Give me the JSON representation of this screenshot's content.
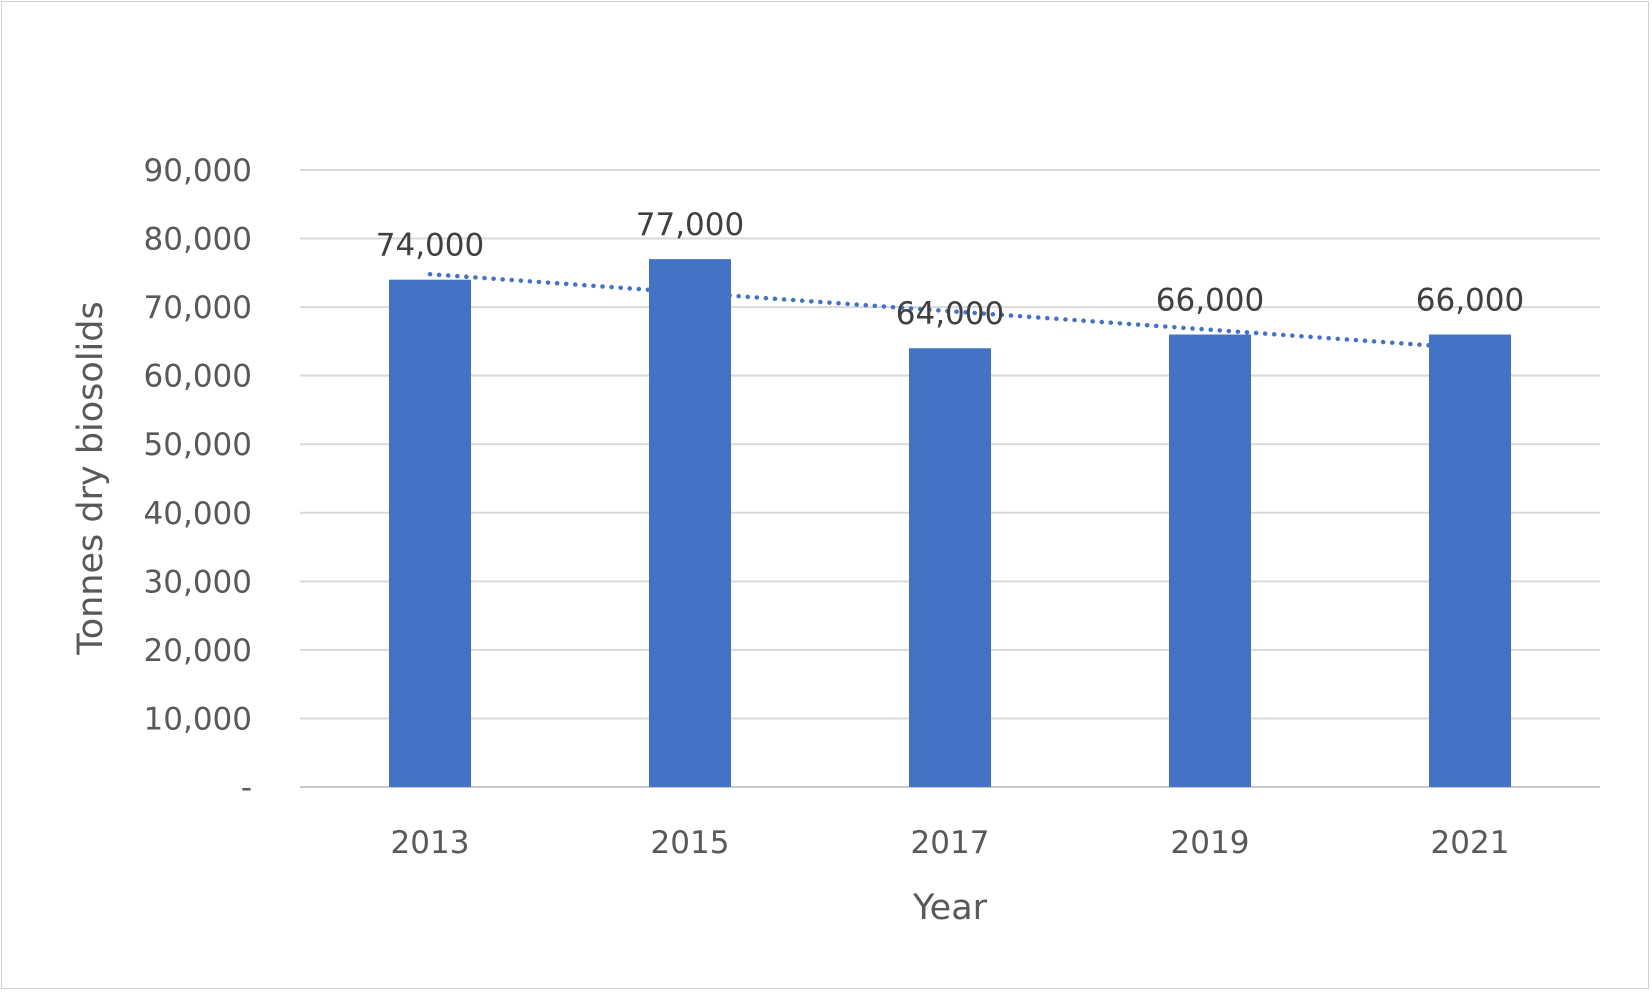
{
  "chart_data": {
    "type": "bar",
    "categories": [
      "2013",
      "2015",
      "2017",
      "2019",
      "2021"
    ],
    "values": [
      74000,
      77000,
      64000,
      66000,
      66000
    ],
    "data_labels": [
      "74,000",
      "77,000",
      "64,000",
      "66,000",
      "66,000"
    ],
    "title": "",
    "xlabel": "Year",
    "ylabel": "Tonnes dry biosolids",
    "ylim": [
      0,
      90000
    ],
    "yticks": [
      0,
      10000,
      20000,
      30000,
      40000,
      50000,
      60000,
      70000,
      80000,
      90000
    ],
    "ytick_labels": [
      "-",
      "10,000",
      "20,000",
      "30,000",
      "40,000",
      "50,000",
      "60,000",
      "70,000",
      "80,000",
      "90,000"
    ],
    "grid": true,
    "legend": "none",
    "bar_color": "#4472C4",
    "trendline": {
      "type": "linear",
      "style": "dotted",
      "color": "#4472C4"
    }
  }
}
